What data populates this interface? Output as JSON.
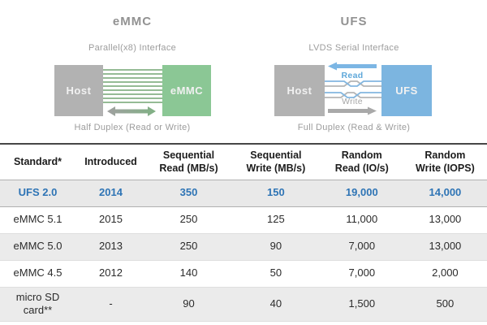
{
  "diagrams": {
    "emmc": {
      "title": "eMMC",
      "interface_label": "Parallel(x8) Interface",
      "host_label": "Host",
      "device_label": "eMMC",
      "duplex_label": "Half Duplex (Read or Write)",
      "bus_line_count": 9
    },
    "ufs": {
      "title": "UFS",
      "interface_label": "LVDS Serial Interface",
      "host_label": "Host",
      "device_label": "UFS",
      "read_label": "Read",
      "write_label": "Write",
      "duplex_label": "Full Duplex (Read & Write)"
    }
  },
  "table": {
    "headers": [
      "Standard*",
      "Introduced",
      "Sequential\nRead (MB/s)",
      "Sequential\nWrite (MB/s)",
      "Random\nRead (IO/s)",
      "Random\nWrite (IOPS)"
    ],
    "rows": [
      {
        "cells": [
          "UFS 2.0",
          "2014",
          "350",
          "150",
          "19,000",
          "14,000"
        ],
        "highlight": true,
        "shaded": true
      },
      {
        "cells": [
          "eMMC 5.1",
          "2015",
          "250",
          "125",
          "11,000",
          "13,000"
        ],
        "highlight": false,
        "shaded": false
      },
      {
        "cells": [
          "eMMC 5.0",
          "2013",
          "250",
          "90",
          "7,000",
          "13,000"
        ],
        "highlight": false,
        "shaded": true
      },
      {
        "cells": [
          "eMMC 4.5",
          "2012",
          "140",
          "50",
          "7,000",
          "2,000"
        ],
        "highlight": false,
        "shaded": false
      },
      {
        "cells": [
          "micro SD card**",
          "-",
          "90",
          "40",
          "1,500",
          "500"
        ],
        "highlight": false,
        "shaded": true
      }
    ]
  },
  "colors": {
    "accent_blue_text": "#2e74b5",
    "device_green": "#8bc795",
    "device_blue": "#7cb5e0",
    "host_gray": "#b2b2b2",
    "row_stripe": "#ebebeb",
    "read_arrow_blue": "#7cb6e4",
    "write_arrow_gray": "#a9a9a9",
    "bus_line_green": "#95bb95"
  }
}
